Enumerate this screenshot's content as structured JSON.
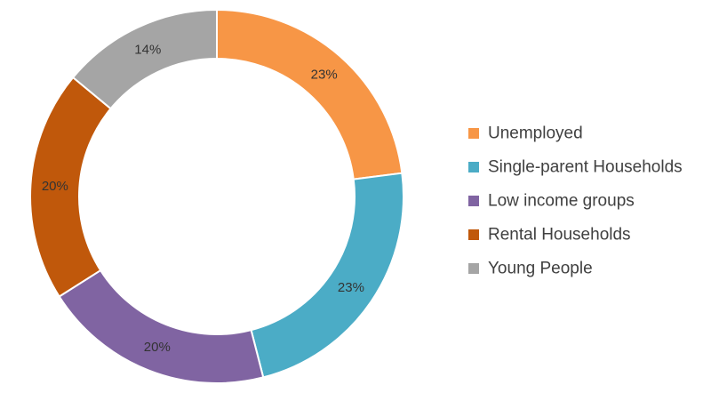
{
  "chart_data": {
    "type": "pie",
    "donut": true,
    "title": "",
    "categories": [
      "Unemployed",
      "Single-parent Households",
      "Low income groups",
      "Rental Households",
      "Young People"
    ],
    "values": [
      23,
      23,
      20,
      20,
      14
    ],
    "labels": [
      "23%",
      "23%",
      "20%",
      "20%",
      "14%"
    ],
    "colors": [
      "#F79646",
      "#4BACC6",
      "#8064A2",
      "#C0580B",
      "#A5A5A5"
    ],
    "legend_position": "right",
    "start_angle": "top",
    "direction": "clockwise"
  }
}
